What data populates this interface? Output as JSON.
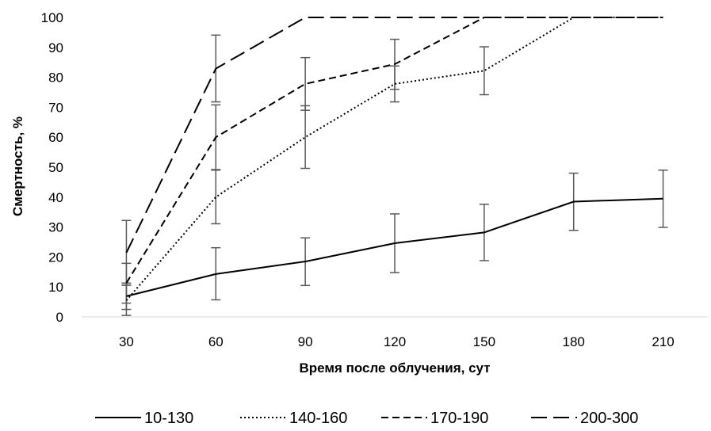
{
  "chart_data": {
    "type": "line",
    "title": "",
    "xlabel": "Время после облучения, сут",
    "ylabel": "Смертность, %",
    "x": [
      30,
      60,
      90,
      120,
      150,
      180,
      210
    ],
    "x_tick_labels": [
      "30",
      "60",
      "90",
      "120",
      "150",
      "180",
      "210"
    ],
    "ylim": [
      0,
      100
    ],
    "y_ticks": [
      0,
      10,
      20,
      30,
      40,
      50,
      60,
      70,
      80,
      90,
      100
    ],
    "y_tick_labels": [
      "0",
      "10",
      "20",
      "30",
      "40",
      "50",
      "60",
      "70",
      "80",
      "90",
      "100"
    ],
    "grid": false,
    "legend_position": "bottom",
    "series": [
      {
        "name": "10-130",
        "style": "solid",
        "color": "#000000",
        "values": [
          6.9,
          14.3,
          18.5,
          24.6,
          28.2,
          38.5,
          39.5
        ],
        "error_low": [
          2.5,
          5.7,
          10.5,
          14.8,
          18.8,
          28.9,
          29.9
        ],
        "error_high": [
          11.3,
          23.1,
          26.4,
          34.4,
          37.6,
          48.0,
          49.0
        ]
      },
      {
        "name": "140-160",
        "style": "dotted",
        "color": "#000000",
        "values": [
          5.5,
          40.0,
          60.0,
          77.8,
          82.2,
          100,
          100
        ],
        "error_low": [
          0.5,
          31.1,
          49.6,
          71.8,
          74.2,
          null,
          null
        ],
        "error_high": [
          10.6,
          49.0,
          70.5,
          83.8,
          90.2,
          null,
          null
        ]
      },
      {
        "name": "170-190",
        "style": "dashed",
        "color": "#000000",
        "values": [
          11.3,
          60.0,
          77.8,
          84.4,
          100,
          100,
          100
        ],
        "error_low": [
          4.6,
          49.2,
          69.0,
          76.0,
          null,
          null,
          null
        ],
        "error_high": [
          17.9,
          70.8,
          86.6,
          92.7,
          null,
          null,
          null
        ]
      },
      {
        "name": "200-300",
        "style": "long-dash",
        "color": "#000000",
        "values": [
          21.4,
          82.9,
          100,
          100,
          100,
          100,
          100
        ],
        "error_low": [
          10.6,
          71.8,
          null,
          null,
          null,
          null,
          null
        ],
        "error_high": [
          32.2,
          94.1,
          null,
          null,
          null,
          null,
          null
        ]
      }
    ],
    "error_bar_color": "#595959"
  }
}
